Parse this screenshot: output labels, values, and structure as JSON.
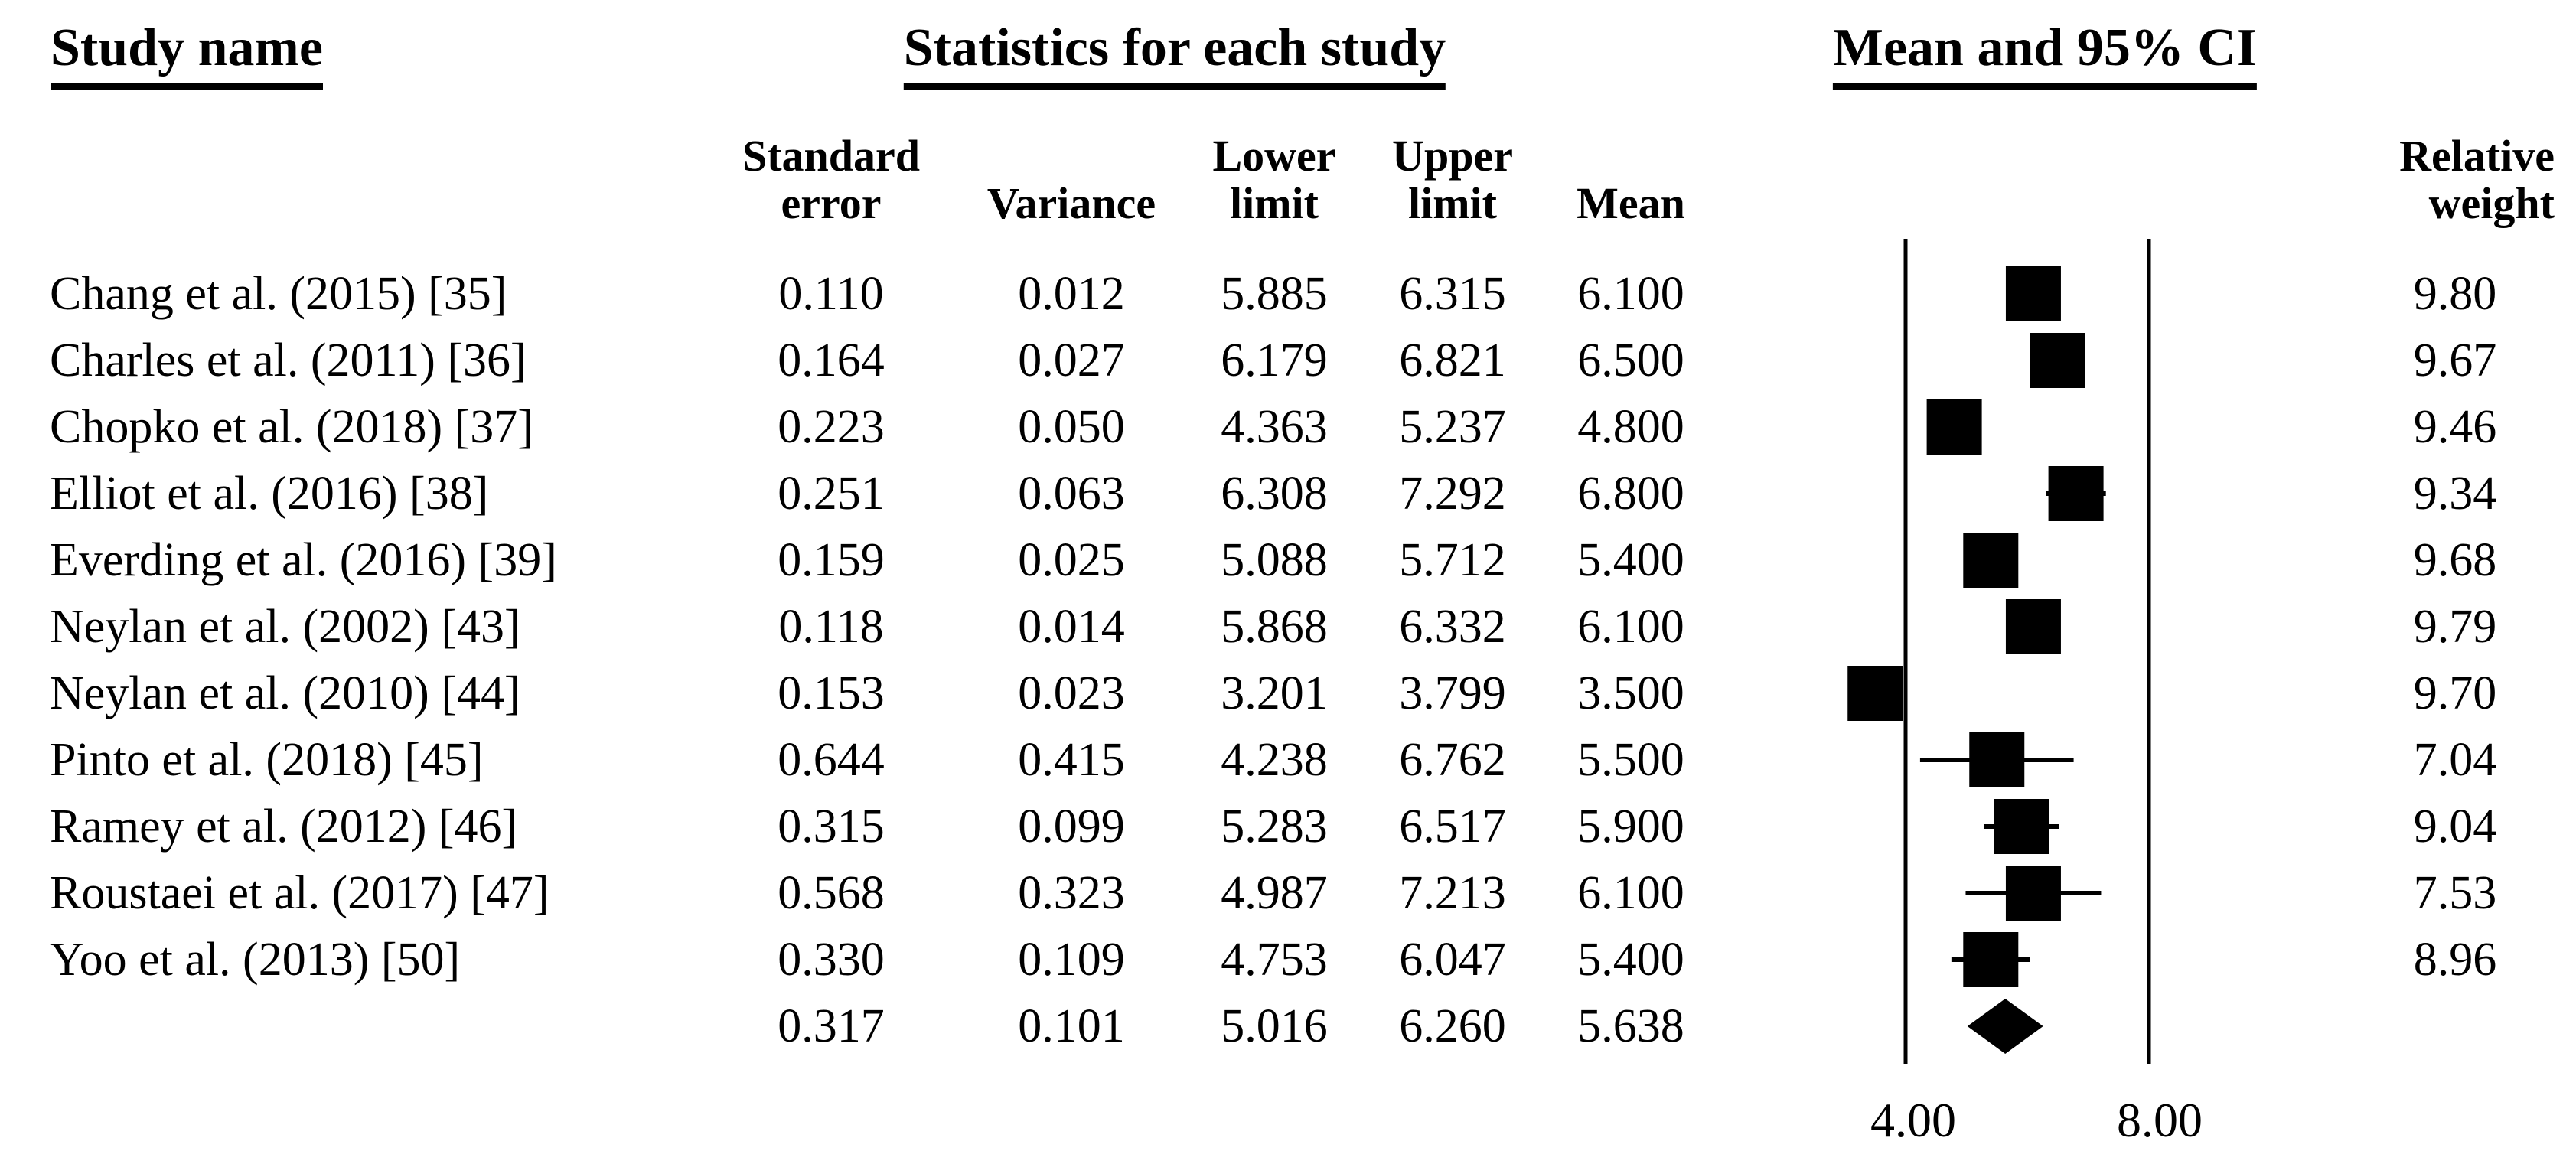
{
  "title_row": {
    "study_name": "Study name",
    "statistics": "Statistics for each study",
    "ci": "Mean and 95% CI"
  },
  "column_headers": {
    "standard_error": [
      "Standard",
      "error"
    ],
    "variance": "Variance",
    "lower_limit": [
      "Lower",
      "limit"
    ],
    "upper_limit": [
      "Upper",
      "limit"
    ],
    "mean": "Mean",
    "relative_weight": [
      "Relative",
      "weight"
    ]
  },
  "axis": {
    "tick_labels": [
      "4.00",
      "8.00"
    ]
  },
  "studies": [
    {
      "name": "Chang et al. (2015) [35]",
      "standard_error": "0.110",
      "variance": "0.012",
      "lower_limit": "5.885",
      "upper_limit": "6.315",
      "mean": "6.100",
      "relative_weight": "9.80"
    },
    {
      "name": "Charles et al. (2011) [36]",
      "standard_error": "0.164",
      "variance": "0.027",
      "lower_limit": "6.179",
      "upper_limit": "6.821",
      "mean": "6.500",
      "relative_weight": "9.67"
    },
    {
      "name": "Chopko et al. (2018) [37]",
      "standard_error": "0.223",
      "variance": "0.050",
      "lower_limit": "4.363",
      "upper_limit": "5.237",
      "mean": "4.800",
      "relative_weight": "9.46"
    },
    {
      "name": "Elliot et al. (2016) [38]",
      "standard_error": "0.251",
      "variance": "0.063",
      "lower_limit": "6.308",
      "upper_limit": "7.292",
      "mean": "6.800",
      "relative_weight": "9.34"
    },
    {
      "name": "Everding et al. (2016) [39]",
      "standard_error": "0.159",
      "variance": "0.025",
      "lower_limit": "5.088",
      "upper_limit": "5.712",
      "mean": "5.400",
      "relative_weight": "9.68"
    },
    {
      "name": "Neylan et al. (2002) [43]",
      "standard_error": "0.118",
      "variance": "0.014",
      "lower_limit": "5.868",
      "upper_limit": "6.332",
      "mean": "6.100",
      "relative_weight": "9.79"
    },
    {
      "name": "Neylan et al. (2010) [44]",
      "standard_error": "0.153",
      "variance": "0.023",
      "lower_limit": "3.201",
      "upper_limit": "3.799",
      "mean": "3.500",
      "relative_weight": "9.70"
    },
    {
      "name": "Pinto et al. (2018) [45]",
      "standard_error": "0.644",
      "variance": "0.415",
      "lower_limit": "4.238",
      "upper_limit": "6.762",
      "mean": "5.500",
      "relative_weight": "7.04"
    },
    {
      "name": "Ramey et al. (2012) [46]",
      "standard_error": "0.315",
      "variance": "0.099",
      "lower_limit": "5.283",
      "upper_limit": "6.517",
      "mean": "5.900",
      "relative_weight": "9.04"
    },
    {
      "name": "Roustaei et al. (2017) [47]",
      "standard_error": "0.568",
      "variance": "0.323",
      "lower_limit": "4.987",
      "upper_limit": "7.213",
      "mean": "6.100",
      "relative_weight": "7.53"
    },
    {
      "name": "Yoo et al. (2013) [50]",
      "standard_error": "0.330",
      "variance": "0.109",
      "lower_limit": "4.753",
      "upper_limit": "6.047",
      "mean": "5.400",
      "relative_weight": "8.96"
    }
  ],
  "summary": {
    "standard_error": "0.317",
    "variance": "0.101",
    "lower_limit": "5.016",
    "upper_limit": "6.260",
    "mean": "5.638"
  },
  "chart_data": {
    "type": "forest",
    "title": "Mean and 95% CI",
    "marker": "square",
    "summary_marker": "diamond",
    "x_axis": {
      "tick_values": [
        4.0,
        8.0
      ],
      "tick_labels": [
        "4.00",
        "8.00"
      ],
      "reference_lines_at": [
        4.0,
        8.0
      ],
      "approx_range": [
        1.8,
        10.0
      ]
    },
    "studies": [
      {
        "name": "Chang et al. (2015) [35]",
        "mean": 6.1,
        "lower": 5.885,
        "upper": 6.315,
        "standard_error": 0.11,
        "variance": 0.012,
        "relative_weight": 9.8
      },
      {
        "name": "Charles et al. (2011) [36]",
        "mean": 6.5,
        "lower": 6.179,
        "upper": 6.821,
        "standard_error": 0.164,
        "variance": 0.027,
        "relative_weight": 9.67
      },
      {
        "name": "Chopko et al. (2018) [37]",
        "mean": 4.8,
        "lower": 4.363,
        "upper": 5.237,
        "standard_error": 0.223,
        "variance": 0.05,
        "relative_weight": 9.46
      },
      {
        "name": "Elliot et al. (2016) [38]",
        "mean": 6.8,
        "lower": 6.308,
        "upper": 7.292,
        "standard_error": 0.251,
        "variance": 0.063,
        "relative_weight": 9.34
      },
      {
        "name": "Everding et al. (2016) [39]",
        "mean": 5.4,
        "lower": 5.088,
        "upper": 5.712,
        "standard_error": 0.159,
        "variance": 0.025,
        "relative_weight": 9.68
      },
      {
        "name": "Neylan et al. (2002) [43]",
        "mean": 6.1,
        "lower": 5.868,
        "upper": 6.332,
        "standard_error": 0.118,
        "variance": 0.014,
        "relative_weight": 9.79
      },
      {
        "name": "Neylan et al. (2010) [44]",
        "mean": 3.5,
        "lower": 3.201,
        "upper": 3.799,
        "standard_error": 0.153,
        "variance": 0.023,
        "relative_weight": 9.7
      },
      {
        "name": "Pinto et al. (2018) [45]",
        "mean": 5.5,
        "lower": 4.238,
        "upper": 6.762,
        "standard_error": 0.644,
        "variance": 0.415,
        "relative_weight": 7.04
      },
      {
        "name": "Ramey et al. (2012) [46]",
        "mean": 5.9,
        "lower": 5.283,
        "upper": 6.517,
        "standard_error": 0.315,
        "variance": 0.099,
        "relative_weight": 9.04
      },
      {
        "name": "Roustaei et al. (2017) [47]",
        "mean": 6.1,
        "lower": 4.987,
        "upper": 7.213,
        "standard_error": 0.568,
        "variance": 0.323,
        "relative_weight": 7.53
      },
      {
        "name": "Yoo et al. (2013) [50]",
        "mean": 5.4,
        "lower": 4.753,
        "upper": 6.047,
        "standard_error": 0.33,
        "variance": 0.109,
        "relative_weight": 8.96
      }
    ],
    "summary": {
      "mean": 5.638,
      "lower": 5.016,
      "upper": 6.26,
      "standard_error": 0.317,
      "variance": 0.101
    }
  }
}
